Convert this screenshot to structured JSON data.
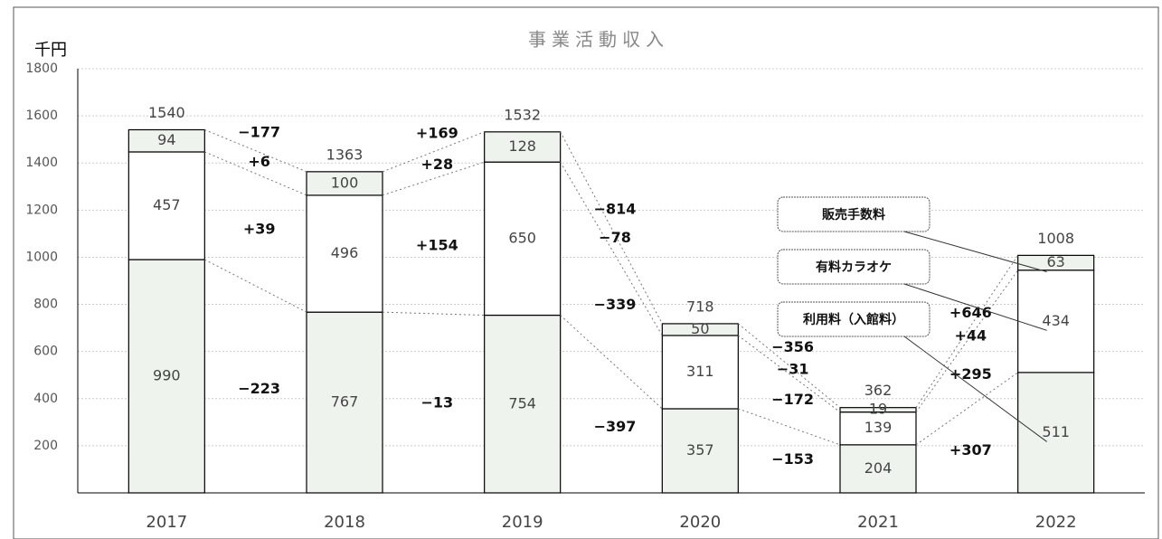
{
  "chart_data": {
    "type": "stacked_bar",
    "title": "事業活動収入",
    "y_label": "千円",
    "categories": [
      "2017",
      "2018",
      "2019",
      "2020",
      "2021",
      "2022"
    ],
    "series": [
      {
        "name": "利用料（入館料）",
        "color": "#eef3ee",
        "values": [
          990,
          767,
          754,
          357,
          204,
          511
        ]
      },
      {
        "name": "有料カラオケ",
        "color": "#ffffff",
        "values": [
          457,
          496,
          650,
          311,
          139,
          434
        ]
      },
      {
        "name": "販売手数料",
        "color": "#eef3ee",
        "values": [
          94,
          100,
          128,
          50,
          19,
          63
        ]
      }
    ],
    "totals": [
      1540,
      1363,
      1532,
      718,
      362,
      1008
    ],
    "change_labels": [
      [
        "−177",
        "+6",
        "+39",
        "−223"
      ],
      [
        "+169",
        "+28",
        "+154",
        "−13"
      ],
      [
        "−814",
        "−78",
        "−339",
        "−397"
      ],
      [
        "−356",
        "−31",
        "−172",
        "−153"
      ],
      [
        "+646",
        "+44",
        "+295",
        "+307"
      ]
    ],
    "ylim": [
      0,
      1800
    ],
    "yticks": [
      200,
      400,
      600,
      800,
      1000,
      1200,
      1400,
      1600,
      1800
    ],
    "grid": true
  }
}
